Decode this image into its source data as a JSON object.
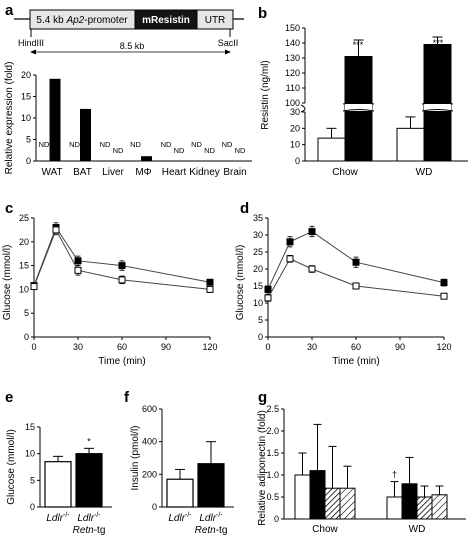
{
  "panel_labels": [
    "a",
    "b",
    "c",
    "d",
    "e",
    "f",
    "g"
  ],
  "construct": {
    "promoter_label_pre": "5.4 kb ",
    "promoter_label_ital": "Ap2",
    "promoter_label_post": "-promoter",
    "gene_label": "mResistin",
    "utr_label": "UTR",
    "site_left": "HindIII",
    "site_right": "SacII",
    "span_label": "8.5 kb"
  },
  "chart_data": [
    {
      "panel": "a",
      "type": "bar",
      "ylabel": "Relative expression (fold)",
      "ylim": [
        0,
        20
      ],
      "yticks": [
        0,
        5,
        10,
        15,
        20
      ],
      "categories": [
        "WAT",
        "BAT",
        "Liver",
        "MΦ",
        "Heart",
        "Kidney",
        "Brain"
      ],
      "series": [
        {
          "values": [
            null,
            null,
            null,
            null,
            null,
            null,
            null
          ],
          "color": "#ffffff",
          "labels": [
            "ND",
            "ND",
            "ND",
            "ND",
            "ND",
            "ND",
            "ND"
          ]
        },
        {
          "values": [
            19,
            12,
            null,
            1,
            null,
            null,
            null
          ],
          "color": "#000000",
          "labels": [
            "",
            "",
            "ND",
            "",
            "ND",
            "ND",
            "ND"
          ]
        }
      ]
    },
    {
      "panel": "b",
      "type": "bar",
      "ylabel": "Resistin (ng/ml)",
      "axis_break": true,
      "yticks": [
        0,
        10,
        20,
        30,
        100,
        110,
        120,
        130,
        140,
        150
      ],
      "categories": [
        "Chow",
        "WD"
      ],
      "series": [
        {
          "values": [
            14,
            20
          ],
          "errors": [
            6,
            7
          ],
          "color": "#ffffff"
        },
        {
          "values": [
            131,
            139
          ],
          "errors": [
            11,
            5
          ],
          "color": "#000000"
        }
      ],
      "annotations": [
        "***",
        "***",
        "†"
      ]
    },
    {
      "panel": "c",
      "type": "line",
      "xlabel": "Time (min)",
      "ylabel": "Glucose (mmol/l)",
      "x": [
        0,
        15,
        30,
        60,
        120
      ],
      "xlim": [
        0,
        120
      ],
      "ylim": [
        0,
        25
      ],
      "xticks": [
        0,
        30,
        60,
        90,
        120
      ],
      "yticks": [
        0,
        5,
        10,
        15,
        20,
        25
      ],
      "series": [
        {
          "marker": "filled-square",
          "values": [
            10.8,
            23.0,
            16.0,
            15.0,
            11.5
          ],
          "errors": [
            0.5,
            1.0,
            1.0,
            1.0,
            0.6
          ]
        },
        {
          "marker": "open-square",
          "values": [
            10.6,
            22.5,
            14.0,
            12.0,
            10.0
          ],
          "errors": [
            0.5,
            1.0,
            1.0,
            0.8,
            0.6
          ]
        }
      ]
    },
    {
      "panel": "d",
      "type": "line",
      "xlabel": "Time (min)",
      "ylabel": "Glucose (mmol/l)",
      "x": [
        0,
        15,
        30,
        60,
        120
      ],
      "xlim": [
        0,
        120
      ],
      "ylim": [
        0,
        35
      ],
      "xticks": [
        0,
        30,
        60,
        90,
        120
      ],
      "yticks": [
        0,
        5,
        10,
        15,
        20,
        25,
        30,
        35
      ],
      "series": [
        {
          "marker": "filled-square",
          "values": [
            14.0,
            28.0,
            31.0,
            22.0,
            16.0
          ],
          "errors": [
            1.0,
            1.5,
            1.5,
            1.5,
            1.0
          ]
        },
        {
          "marker": "open-square",
          "values": [
            11.5,
            23.0,
            20.0,
            15.0,
            12.0
          ],
          "errors": [
            1.0,
            1.0,
            1.0,
            0.8,
            0.6
          ]
        }
      ]
    },
    {
      "panel": "e",
      "type": "bar",
      "ylabel": "Glucose (mmol/l)",
      "ylim": [
        0,
        15
      ],
      "yticks": [
        0,
        5,
        10,
        15
      ],
      "categories": [
        {
          "line1_ital": "Ldlr",
          "line1_sup": "-/-"
        },
        {
          "line1_ital": "Ldlr",
          "line1_sup": "-/-",
          "line2_ital": "Retn",
          "line2_post": "-tg"
        }
      ],
      "series": [
        {
          "values": [
            8.5,
            10.0
          ],
          "errors": [
            1.0,
            1.0
          ],
          "colors": [
            "#ffffff",
            "#000000"
          ]
        }
      ],
      "annotations": [
        "*"
      ]
    },
    {
      "panel": "f",
      "type": "bar",
      "ylabel": "Insulin (pmol/l)",
      "ylim": [
        0,
        600
      ],
      "yticks": [
        0,
        200,
        400,
        600
      ],
      "categories": [
        {
          "line1_ital": "Ldlr",
          "line1_sup": "-/-"
        },
        {
          "line1_ital": "Ldlr",
          "line1_sup": "-/-",
          "line2_ital": "Retn",
          "line2_post": "-tg"
        }
      ],
      "series": [
        {
          "values": [
            170,
            265
          ],
          "errors": [
            60,
            135
          ],
          "colors": [
            "#ffffff",
            "#000000"
          ]
        }
      ]
    },
    {
      "panel": "g",
      "type": "bar",
      "ylabel": "Relative adiponectin (fold)",
      "ylim": [
        0,
        2.5
      ],
      "yticks": [
        0,
        0.5,
        1.0,
        1.5,
        2.0,
        2.5
      ],
      "ytick_labels": [
        "0",
        "0.5",
        "1.0",
        "1.5",
        "2.0",
        "2.5"
      ],
      "categories": [
        "Chow",
        "WD"
      ],
      "series": [
        {
          "fill": "white",
          "values": [
            1.0,
            0.5
          ],
          "errors": [
            0.5,
            0.35
          ]
        },
        {
          "fill": "black",
          "values": [
            1.1,
            0.8
          ],
          "errors": [
            1.05,
            0.6
          ]
        },
        {
          "fill": "hatched",
          "values": [
            0.7,
            0.5
          ],
          "errors": [
            0.95,
            0.25
          ]
        },
        {
          "fill": "hatched-wide",
          "values": [
            0.7,
            0.55
          ],
          "errors": [
            0.5,
            0.2
          ]
        }
      ],
      "annotations": [
        "†"
      ]
    }
  ]
}
